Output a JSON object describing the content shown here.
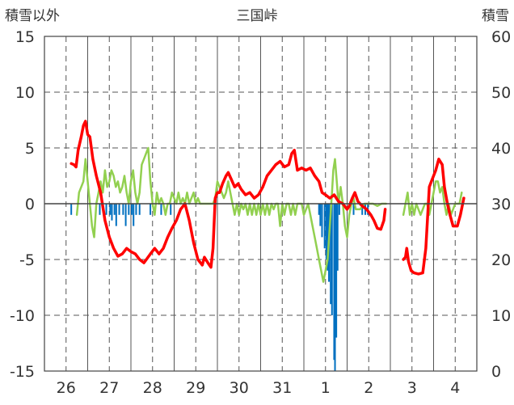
{
  "chart_data": {
    "type": "line",
    "title": "三国峠",
    "ylabel_left": "積雪以外",
    "ylabel_right": "積雪",
    "ylim_left": [
      -15,
      15
    ],
    "ylim_right": [
      0,
      60
    ],
    "yticks_left": [
      "15",
      "10",
      "5",
      "0",
      "-5",
      "-10",
      "-15"
    ],
    "yticks_right": [
      "60",
      "50",
      "40",
      "30",
      "20",
      "10",
      "0"
    ],
    "x_days": [
      {
        "label": "26",
        "start": 0
      },
      {
        "label": "27",
        "start": 1
      },
      {
        "label": "28",
        "start": 2
      },
      {
        "label": "29",
        "start": 3
      },
      {
        "label": "30",
        "start": 4
      },
      {
        "label": "31",
        "start": 5
      },
      {
        "label": "1",
        "start": 6
      },
      {
        "label": "2",
        "start": 7
      },
      {
        "label": "3",
        "start": 8
      },
      {
        "label": "4",
        "start": 9
      }
    ],
    "xlim": [
      0,
      10
    ],
    "grid": true,
    "colors": {
      "red": "#ff0000",
      "green": "#92d050",
      "blue": "#0070c0",
      "grid": "#555555"
    },
    "series": [
      {
        "axis": "left",
        "color": "#ff0000",
        "points": [
          [
            0.62,
            3.6
          ],
          [
            0.68,
            3.5
          ],
          [
            0.73,
            3.3
          ],
          [
            0.78,
            4.8
          ],
          [
            0.85,
            6.0
          ],
          [
            0.9,
            7.0
          ],
          [
            0.95,
            7.4
          ],
          [
            1.0,
            6.2
          ],
          [
            1.05,
            6.0
          ],
          [
            1.12,
            4.0
          ],
          [
            1.2,
            2.5
          ],
          [
            1.3,
            1.0
          ],
          [
            1.4,
            -1.5
          ],
          [
            1.5,
            -3.0
          ],
          [
            1.6,
            -4.0
          ],
          [
            1.7,
            -4.7
          ],
          [
            1.8,
            -4.5
          ],
          [
            1.9,
            -4.0
          ],
          [
            2.0,
            -4.3
          ],
          [
            2.1,
            -4.5
          ],
          [
            2.2,
            -5.0
          ],
          [
            2.3,
            -5.3
          ],
          [
            2.45,
            -4.5
          ],
          [
            2.55,
            -4.0
          ],
          [
            2.65,
            -4.5
          ],
          [
            2.75,
            -4.0
          ],
          [
            2.85,
            -3.0
          ],
          [
            2.95,
            -2.2
          ],
          [
            3.05,
            -1.5
          ],
          [
            3.15,
            -0.5
          ],
          [
            3.25,
            0.0
          ],
          [
            3.35,
            -1.5
          ],
          [
            3.45,
            -3.5
          ],
          [
            3.55,
            -5.0
          ],
          [
            3.65,
            -5.5
          ],
          [
            3.7,
            -4.8
          ],
          [
            3.78,
            -5.3
          ],
          [
            3.85,
            -5.7
          ],
          [
            3.9,
            -4.0
          ],
          [
            3.95,
            0.5
          ],
          [
            4.0,
            1.0
          ],
          [
            4.05,
            1.0
          ],
          [
            4.12,
            1.8
          ],
          [
            4.2,
            2.5
          ],
          [
            4.25,
            2.8
          ],
          [
            4.32,
            2.2
          ],
          [
            4.4,
            1.5
          ],
          [
            4.48,
            1.8
          ],
          [
            4.55,
            1.3
          ],
          [
            4.65,
            0.8
          ],
          [
            4.75,
            1.0
          ],
          [
            4.85,
            0.5
          ],
          [
            4.95,
            0.8
          ],
          [
            5.05,
            1.5
          ],
          [
            5.15,
            2.5
          ],
          [
            5.25,
            3.0
          ],
          [
            5.35,
            3.5
          ],
          [
            5.45,
            3.8
          ],
          [
            5.55,
            3.3
          ],
          [
            5.65,
            3.5
          ],
          [
            5.72,
            4.5
          ],
          [
            5.78,
            4.8
          ],
          [
            5.85,
            3.0
          ],
          [
            5.95,
            3.2
          ],
          [
            6.05,
            3.0
          ],
          [
            6.15,
            3.2
          ],
          [
            6.25,
            2.5
          ],
          [
            6.35,
            2.0
          ],
          [
            6.42,
            1.0
          ],
          [
            6.5,
            0.8
          ],
          [
            6.6,
            0.5
          ],
          [
            6.7,
            0.8
          ],
          [
            6.8,
            0.2
          ],
          [
            6.9,
            0.0
          ],
          [
            7.0,
            -0.5
          ],
          [
            7.05,
            -0.2
          ],
          [
            7.12,
            0.5
          ],
          [
            7.18,
            1.0
          ],
          [
            7.25,
            0.2
          ],
          [
            7.35,
            -0.2
          ],
          [
            7.45,
            -0.5
          ],
          [
            7.55,
            -1.0
          ],
          [
            7.62,
            -1.5
          ],
          [
            7.7,
            -2.2
          ],
          [
            7.78,
            -2.3
          ],
          [
            7.85,
            -1.5
          ],
          [
            7.88,
            -0.5
          ]
        ]
      },
      {
        "axis": "left",
        "color": "#ff0000",
        "points": [
          [
            8.3,
            -5.0
          ],
          [
            8.35,
            -4.8
          ],
          [
            8.38,
            -4.0
          ],
          [
            8.42,
            -5.2
          ],
          [
            8.48,
            -6.0
          ],
          [
            8.55,
            -6.2
          ],
          [
            8.65,
            -6.3
          ],
          [
            8.75,
            -6.2
          ],
          [
            8.82,
            -4.0
          ],
          [
            8.9,
            1.5
          ],
          [
            8.95,
            2.0
          ],
          [
            9.05,
            3.0
          ],
          [
            9.12,
            4.0
          ],
          [
            9.2,
            3.5
          ],
          [
            9.25,
            1.5
          ],
          [
            9.32,
            0.0
          ],
          [
            9.38,
            -1.0
          ],
          [
            9.45,
            -2.0
          ],
          [
            9.55,
            -2.0
          ],
          [
            9.62,
            -1.0
          ],
          [
            9.7,
            0.5
          ]
        ]
      },
      {
        "axis": "left",
        "color": "#92d050",
        "points": [
          [
            0.75,
            -1.0
          ],
          [
            0.8,
            1.0
          ],
          [
            0.85,
            1.5
          ],
          [
            0.9,
            2.0
          ],
          [
            0.95,
            4.0
          ],
          [
            1.0,
            2.0
          ],
          [
            1.05,
            0.0
          ],
          [
            1.1,
            -2.0
          ],
          [
            1.15,
            -3.0
          ],
          [
            1.2,
            0.0
          ],
          [
            1.25,
            1.0
          ],
          [
            1.3,
            2.0
          ],
          [
            1.35,
            1.0
          ],
          [
            1.4,
            3.0
          ],
          [
            1.45,
            1.5
          ],
          [
            1.5,
            2.0
          ],
          [
            1.55,
            3.0
          ],
          [
            1.6,
            2.5
          ],
          [
            1.65,
            1.5
          ],
          [
            1.7,
            2.0
          ],
          [
            1.75,
            1.0
          ],
          [
            1.8,
            1.5
          ],
          [
            1.85,
            2.5
          ],
          [
            1.9,
            1.0
          ],
          [
            1.95,
            0.0
          ],
          [
            2.0,
            2.0
          ],
          [
            2.05,
            3.0
          ],
          [
            2.1,
            1.0
          ],
          [
            2.15,
            0.0
          ],
          [
            2.2,
            1.0
          ],
          [
            2.25,
            3.5
          ],
          [
            2.3,
            4.0
          ],
          [
            2.35,
            4.5
          ],
          [
            2.4,
            5.0
          ],
          [
            2.45,
            2.0
          ],
          [
            2.5,
            0.0
          ],
          [
            2.55,
            -1.0
          ],
          [
            2.6,
            1.0
          ],
          [
            2.65,
            0.0
          ],
          [
            2.7,
            0.5
          ],
          [
            2.75,
            0.0
          ],
          [
            2.8,
            -1.0
          ],
          [
            2.85,
            0.0
          ],
          [
            2.9,
            0.0
          ],
          [
            2.95,
            1.0
          ],
          [
            3.0,
            0.5
          ],
          [
            3.05,
            0.0
          ],
          [
            3.1,
            1.0
          ],
          [
            3.15,
            0.0
          ],
          [
            3.2,
            0.5
          ],
          [
            3.25,
            0.0
          ],
          [
            3.3,
            1.0
          ],
          [
            3.35,
            0.0
          ],
          [
            3.4,
            0.5
          ],
          [
            3.45,
            1.0
          ],
          [
            3.5,
            0.0
          ],
          [
            3.55,
            0.5
          ],
          [
            3.6,
            0.0
          ],
          [
            3.65,
            0.0
          ],
          [
            3.7,
            0.0
          ],
          [
            3.75,
            0.0
          ],
          [
            3.8,
            0.0
          ],
          [
            3.85,
            0.0
          ],
          [
            3.9,
            0.0
          ],
          [
            3.95,
            0.5
          ],
          [
            4.0,
            2.0
          ],
          [
            4.05,
            1.5
          ],
          [
            4.1,
            1.0
          ],
          [
            4.15,
            0.5
          ],
          [
            4.2,
            1.0
          ],
          [
            4.25,
            2.0
          ],
          [
            4.3,
            1.0
          ],
          [
            4.35,
            0.0
          ],
          [
            4.4,
            -1.0
          ],
          [
            4.45,
            0.0
          ],
          [
            4.5,
            -1.0
          ],
          [
            4.55,
            0.0
          ],
          [
            4.6,
            -0.5
          ],
          [
            4.65,
            0.0
          ],
          [
            4.7,
            -1.0
          ],
          [
            4.75,
            0.0
          ],
          [
            4.8,
            -1.0
          ],
          [
            4.85,
            0.0
          ],
          [
            4.9,
            -1.0
          ],
          [
            4.95,
            0.0
          ],
          [
            5.0,
            -1.0
          ],
          [
            5.05,
            0.0
          ],
          [
            5.1,
            -1.0
          ],
          [
            5.15,
            0.0
          ],
          [
            5.2,
            -1.0
          ],
          [
            5.25,
            0.0
          ],
          [
            5.3,
            -0.5
          ],
          [
            5.35,
            0.0
          ],
          [
            5.4,
            0.0
          ],
          [
            5.45,
            -2.0
          ],
          [
            5.5,
            0.0
          ],
          [
            5.55,
            -1.0
          ],
          [
            5.6,
            0.0
          ],
          [
            5.65,
            0.0
          ],
          [
            5.7,
            -1.0
          ],
          [
            5.75,
            0.0
          ],
          [
            5.8,
            -1.0
          ],
          [
            5.85,
            0.0
          ],
          [
            5.9,
            0.0
          ],
          [
            5.95,
            0.0
          ],
          [
            6.0,
            -1.0
          ],
          [
            6.05,
            -0.5
          ],
          [
            6.1,
            0.0
          ],
          [
            6.15,
            -1.0
          ],
          [
            6.2,
            -2.0
          ],
          [
            6.25,
            -3.0
          ],
          [
            6.3,
            -4.0
          ],
          [
            6.35,
            -5.0
          ],
          [
            6.4,
            -6.0
          ],
          [
            6.45,
            -7.0
          ],
          [
            6.5,
            -6.0
          ],
          [
            6.55,
            -5.0
          ],
          [
            6.6,
            -2.0
          ],
          [
            6.65,
            1.0
          ],
          [
            6.68,
            3.0
          ],
          [
            6.72,
            4.0
          ],
          [
            6.76,
            2.0
          ],
          [
            6.8,
            0.0
          ],
          [
            6.85,
            1.5
          ],
          [
            6.9,
            0.0
          ],
          [
            6.95,
            -2.0
          ],
          [
            7.0,
            -3.0
          ],
          [
            7.05,
            -1.0
          ],
          [
            7.1,
            0.0
          ],
          [
            7.15,
            0.5
          ],
          [
            7.2,
            -0.5
          ],
          [
            7.3,
            -0.5
          ],
          [
            7.4,
            0.0
          ],
          [
            7.5,
            0.0
          ],
          [
            7.6,
            0.0
          ],
          [
            7.7,
            -0.2
          ],
          [
            7.8,
            0.0
          ],
          [
            7.9,
            0.0
          ]
        ]
      },
      {
        "axis": "left",
        "color": "#92d050",
        "points": [
          [
            8.3,
            -1.0
          ],
          [
            8.35,
            0.0
          ],
          [
            8.4,
            1.0
          ],
          [
            8.45,
            -1.0
          ],
          [
            8.5,
            0.0
          ],
          [
            8.55,
            -1.0
          ],
          [
            8.6,
            0.0
          ],
          [
            8.7,
            -1.0
          ],
          [
            8.8,
            0.0
          ],
          [
            8.85,
            0.0
          ],
          [
            8.9,
            -1.0
          ],
          [
            8.95,
            0.0
          ],
          [
            9.0,
            1.0
          ],
          [
            9.05,
            2.0
          ],
          [
            9.1,
            2.0
          ],
          [
            9.15,
            1.0
          ],
          [
            9.2,
            1.5
          ],
          [
            9.25,
            0.0
          ],
          [
            9.3,
            -1.0
          ],
          [
            9.35,
            0.0
          ],
          [
            9.4,
            -1.0
          ],
          [
            9.5,
            0.0
          ],
          [
            9.55,
            0.0
          ],
          [
            9.6,
            0.0
          ],
          [
            9.65,
            1.0
          ]
        ]
      }
    ],
    "bars": {
      "axis": "left",
      "color": "#0070c0",
      "baseline": 0,
      "data": [
        [
          0.62,
          -1.0
        ],
        [
          1.28,
          -1.0
        ],
        [
          1.43,
          -1.0
        ],
        [
          1.52,
          -1.0
        ],
        [
          1.56,
          -1.5
        ],
        [
          1.62,
          -1.0
        ],
        [
          1.66,
          -2.0
        ],
        [
          1.73,
          -1.0
        ],
        [
          1.82,
          -1.0
        ],
        [
          1.88,
          -2.0
        ],
        [
          1.95,
          -1.0
        ],
        [
          2.02,
          -1.0
        ],
        [
          2.06,
          -2.0
        ],
        [
          2.12,
          -1.0
        ],
        [
          2.2,
          -1.0
        ],
        [
          2.45,
          -1.0
        ],
        [
          2.7,
          -1.0
        ],
        [
          2.92,
          -1.0
        ],
        [
          6.35,
          -1.0
        ],
        [
          6.38,
          -2.0
        ],
        [
          6.42,
          -3.0
        ],
        [
          6.48,
          -4.0
        ],
        [
          6.52,
          -5.0
        ],
        [
          6.55,
          -6.0
        ],
        [
          6.58,
          -7.0
        ],
        [
          6.62,
          -9.0
        ],
        [
          6.65,
          -10.0
        ],
        [
          6.7,
          -14.0
        ],
        [
          6.72,
          -15.0
        ],
        [
          6.75,
          -12.0
        ],
        [
          6.78,
          -6.0
        ],
        [
          6.82,
          -1.0
        ],
        [
          7.15,
          -1.0
        ],
        [
          7.35,
          -1.0
        ],
        [
          7.42,
          -1.0
        ],
        [
          7.48,
          -1.0
        ]
      ]
    }
  }
}
